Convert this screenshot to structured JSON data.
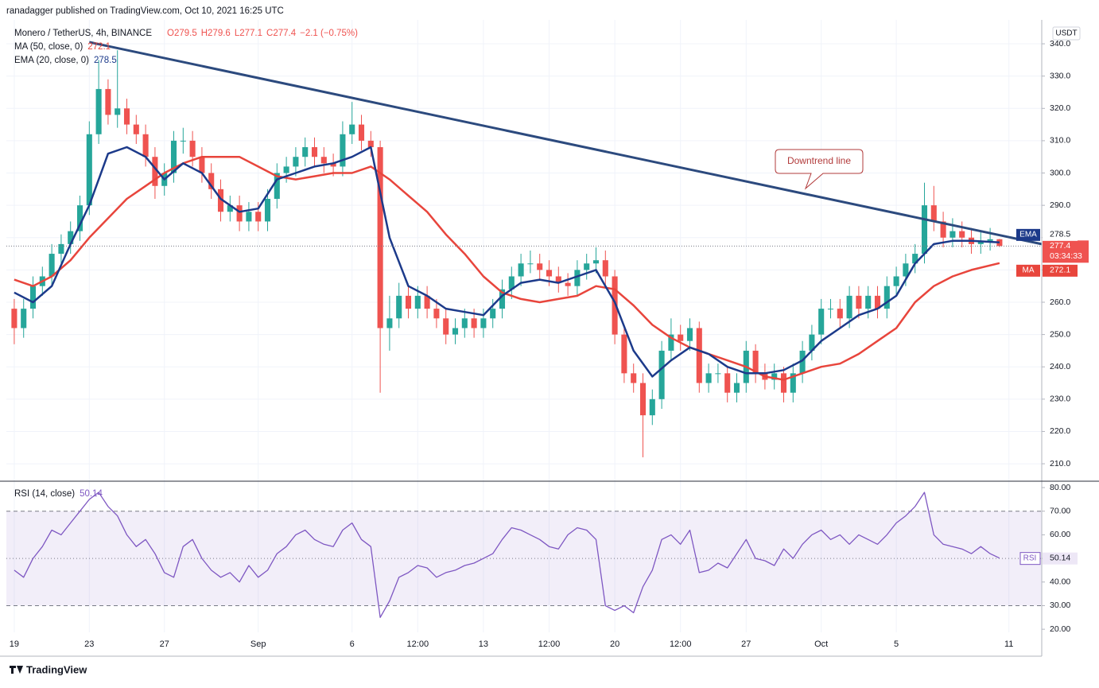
{
  "header": {
    "published": "ranadagger published on TradingView.com, Oct 10, 2021 16:25 UTC",
    "symbol": "Monero / TetherUS, 4h, BINANCE",
    "ohlc": [
      "O279.5",
      "H279.6",
      "L277.1",
      "C277.4",
      "−2.1 (−0.75%)"
    ],
    "currency": "USDT",
    "countdown": "03:34:33"
  },
  "footer": {
    "brand": "TradingView"
  },
  "chart_data": [
    {
      "type": "candlestick",
      "up_color": "#26a69a",
      "down_color": "#ef5350",
      "x": [
        0,
        0.5,
        1,
        1.5,
        2,
        2.5,
        3,
        3.5,
        4,
        4.5,
        5,
        5.5,
        6,
        6.5,
        7,
        7.5,
        8,
        8.5,
        9,
        9.5,
        10,
        10.5,
        11,
        11.5,
        12,
        12.5,
        13,
        13.5,
        14,
        14.5,
        15,
        15.5,
        16,
        16.5,
        17,
        17.5,
        18,
        18.5,
        19,
        19.5,
        20,
        20.5,
        21,
        21.5,
        22,
        22.5,
        23,
        23.5,
        24,
        24.5,
        25,
        25.5,
        26,
        26.5,
        27,
        27.5,
        28,
        28.5,
        29,
        29.5,
        30,
        30.5,
        31,
        31.5,
        32,
        32.5,
        33,
        33.5,
        34,
        34.5,
        35,
        35.5,
        36,
        36.5,
        37,
        37.5,
        38,
        38.5,
        39,
        39.5,
        40,
        40.5,
        41,
        41.5,
        42,
        42.5,
        43,
        43.5,
        44,
        44.5,
        45,
        45.5,
        46,
        46.5,
        47,
        47.5,
        48,
        48.5,
        49,
        49.5,
        50,
        50.5,
        51,
        51.5,
        52,
        52.5
      ],
      "open": [
        258,
        252,
        258,
        265,
        268,
        275,
        278,
        282,
        290,
        312,
        326,
        318,
        320,
        315,
        312,
        305,
        296,
        300,
        310,
        310,
        305,
        300,
        295,
        288,
        290,
        285,
        288,
        285,
        292,
        300,
        302,
        305,
        308,
        305,
        303,
        302,
        312,
        315,
        310,
        308,
        252,
        255,
        262,
        258,
        262,
        258,
        255,
        250,
        252,
        255,
        252,
        255,
        258,
        264,
        268,
        272,
        272,
        270,
        268,
        266,
        265,
        270,
        272,
        273,
        268,
        250,
        238,
        235,
        225,
        230,
        245,
        250,
        248,
        252,
        235,
        238,
        238,
        232,
        235,
        245,
        238,
        236,
        238,
        232,
        238,
        245,
        250,
        258,
        258,
        255,
        262,
        258,
        262,
        258,
        265,
        268,
        272,
        275,
        290,
        285,
        280,
        282,
        280,
        278,
        279,
        279.5
      ],
      "high": [
        261,
        261,
        268,
        271,
        278,
        281,
        285,
        293,
        316,
        335,
        329,
        338,
        323,
        318,
        315,
        308,
        303,
        313,
        314,
        313,
        308,
        303,
        298,
        293,
        293,
        291,
        291,
        295,
        303,
        305,
        308,
        311,
        311,
        308,
        306,
        316,
        322,
        318,
        313,
        310,
        262,
        266,
        265,
        265,
        265,
        261,
        258,
        255,
        258,
        258,
        258,
        261,
        267,
        271,
        275,
        276,
        275,
        273,
        271,
        269,
        273,
        275,
        277,
        276,
        270,
        253,
        241,
        238,
        233,
        248,
        255,
        253,
        255,
        254,
        241,
        241,
        240,
        238,
        248,
        247,
        241,
        241,
        240,
        241,
        248,
        253,
        261,
        261,
        261,
        265,
        265,
        265,
        265,
        268,
        271,
        275,
        278,
        297,
        296,
        288,
        286,
        285,
        283,
        282,
        283,
        279.6
      ],
      "low": [
        247,
        249,
        255,
        262,
        265,
        272,
        275,
        279,
        287,
        309,
        315,
        314,
        312,
        309,
        302,
        292,
        293,
        297,
        306,
        302,
        297,
        292,
        285,
        285,
        282,
        282,
        282,
        282,
        289,
        297,
        299,
        302,
        302,
        300,
        299,
        299,
        309,
        307,
        305,
        232,
        245,
        252,
        255,
        255,
        255,
        252,
        247,
        247,
        249,
        249,
        249,
        252,
        255,
        261,
        265,
        269,
        267,
        265,
        263,
        262,
        262,
        267,
        269,
        265,
        247,
        235,
        232,
        212,
        222,
        227,
        242,
        245,
        245,
        232,
        232,
        235,
        229,
        229,
        232,
        235,
        233,
        233,
        229,
        229,
        235,
        242,
        247,
        255,
        252,
        252,
        255,
        255,
        255,
        255,
        262,
        265,
        269,
        272,
        282,
        277,
        277,
        277,
        275,
        275,
        276,
        277.1
      ],
      "close": [
        252,
        258,
        265,
        268,
        275,
        278,
        282,
        290,
        312,
        326,
        318,
        320,
        315,
        312,
        305,
        296,
        300,
        310,
        310,
        305,
        300,
        295,
        288,
        290,
        285,
        288,
        285,
        292,
        300,
        302,
        305,
        308,
        305,
        303,
        302,
        312,
        315,
        310,
        308,
        252,
        255,
        262,
        258,
        262,
        258,
        255,
        250,
        252,
        255,
        252,
        255,
        258,
        264,
        268,
        272,
        272,
        270,
        268,
        266,
        265,
        270,
        272,
        273,
        268,
        250,
        238,
        235,
        225,
        230,
        245,
        250,
        248,
        252,
        235,
        238,
        238,
        232,
        235,
        245,
        238,
        236,
        238,
        232,
        238,
        245,
        250,
        258,
        258,
        255,
        262,
        258,
        262,
        258,
        265,
        268,
        272,
        275,
        290,
        285,
        280,
        282,
        280,
        278,
        279,
        279.5,
        277.4
      ],
      "series": [
        {
          "name": "MA (50, close, 0)",
          "short_name": "MA",
          "color": "#e8453c",
          "x": [
            0,
            1,
            2,
            3,
            4,
            5,
            6,
            7,
            8,
            9,
            10,
            11,
            12,
            13,
            14,
            15,
            16,
            17,
            18,
            19,
            20,
            21,
            22,
            23,
            24,
            25,
            26,
            27,
            28,
            29,
            30,
            31,
            32,
            33,
            34,
            35,
            36,
            37,
            38,
            39,
            40,
            41,
            42,
            43,
            44,
            45,
            46,
            47,
            48,
            49,
            50,
            51,
            52.5
          ],
          "values": [
            267,
            265,
            268,
            273,
            280,
            286,
            292,
            296,
            300,
            303,
            305,
            305,
            305,
            302,
            299,
            298,
            299,
            300,
            300,
            302,
            298,
            293,
            288,
            281,
            275,
            268,
            263,
            261,
            260,
            261,
            262,
            265,
            264,
            259,
            253,
            249,
            246,
            244,
            242,
            240,
            237,
            236,
            238,
            240,
            241,
            244,
            248,
            252,
            260,
            265,
            268,
            270,
            272.1
          ]
        },
        {
          "name": "EMA (20, close, 0)",
          "short_name": "EMA",
          "color": "#1c3a8a",
          "x": [
            0,
            1,
            2,
            3,
            4,
            5,
            6,
            7,
            8,
            9,
            10,
            11,
            12,
            13,
            14,
            15,
            16,
            17,
            18,
            19,
            20,
            21,
            22,
            23,
            24,
            25,
            26,
            27,
            28,
            29,
            30,
            31,
            32,
            33,
            34,
            35,
            36,
            37,
            38,
            39,
            40,
            41,
            42,
            43,
            44,
            45,
            46,
            47,
            48,
            49,
            50,
            51,
            52.5
          ],
          "values": [
            263,
            260,
            265,
            278,
            290,
            306,
            308,
            305,
            298,
            303,
            300,
            292,
            288,
            289,
            298,
            300,
            302,
            303,
            305,
            308,
            280,
            265,
            262,
            258,
            257,
            256,
            262,
            266,
            267,
            266,
            268,
            270,
            260,
            245,
            237,
            242,
            246,
            244,
            240,
            238,
            238,
            239,
            242,
            248,
            252,
            256,
            258,
            262,
            272,
            278,
            279,
            279,
            278.5
          ]
        }
      ],
      "trendline": {
        "color": "#2c4a7e",
        "x": [
          4,
          54.75
        ],
        "values": [
          340.5,
          278
        ]
      },
      "annotation": "Downtrend line",
      "xlim": [
        -0.42,
        54.75
      ],
      "ylim": [
        204.6,
        347.4
      ],
      "yticks": [
        {
          "value": 210,
          "label": "210.0"
        },
        {
          "value": 220,
          "label": "220.0"
        },
        {
          "value": 230,
          "label": "230.0"
        },
        {
          "value": 240,
          "label": "240.0"
        },
        {
          "value": 250,
          "label": "250.0"
        },
        {
          "value": 260,
          "label": "260.0"
        },
        {
          "value": 270,
          "label": "270.0"
        },
        {
          "value": 280,
          "label": "280.0"
        },
        {
          "value": 290,
          "label": "290.0"
        },
        {
          "value": 300,
          "label": "300.0"
        },
        {
          "value": 310,
          "label": "310.0"
        },
        {
          "value": 320,
          "label": "320.0"
        },
        {
          "value": 330,
          "label": "330.0"
        },
        {
          "value": 340,
          "label": "340.0"
        }
      ],
      "xticks": [
        {
          "value": 0,
          "label": "19"
        },
        {
          "value": 4,
          "label": "23"
        },
        {
          "value": 8,
          "label": "27"
        },
        {
          "value": 13,
          "label": "Sep"
        },
        {
          "value": 18,
          "label": "6"
        },
        {
          "value": 21.5,
          "label": "12:00"
        },
        {
          "value": 25,
          "label": "13"
        },
        {
          "value": 28.5,
          "label": "12:00"
        },
        {
          "value": 32,
          "label": "20"
        },
        {
          "value": 35.5,
          "label": "12:00"
        },
        {
          "value": 39,
          "label": "27"
        },
        {
          "value": 43,
          "label": "Oct"
        },
        {
          "value": 47,
          "label": "5"
        },
        {
          "value": 53,
          "label": "11"
        }
      ],
      "grid": true
    },
    {
      "type": "line",
      "name": "RSI (14, close)",
      "short_name": "RSI",
      "color": "#7e57c2",
      "x": [
        0,
        0.5,
        1,
        1.5,
        2,
        2.5,
        3,
        3.5,
        4,
        4.5,
        5,
        5.5,
        6,
        6.5,
        7,
        7.5,
        8,
        8.5,
        9,
        9.5,
        10,
        10.5,
        11,
        11.5,
        12,
        12.5,
        13,
        13.5,
        14,
        14.5,
        15,
        15.5,
        16,
        16.5,
        17,
        17.5,
        18,
        18.5,
        19,
        19.5,
        20,
        20.5,
        21,
        21.5,
        22,
        22.5,
        23,
        23.5,
        24,
        24.5,
        25,
        25.5,
        26,
        26.5,
        27,
        27.5,
        28,
        28.5,
        29,
        29.5,
        30,
        30.5,
        31,
        31.5,
        32,
        32.5,
        33,
        33.5,
        34,
        34.5,
        35,
        35.5,
        36,
        36.5,
        37,
        37.5,
        38,
        38.5,
        39,
        39.5,
        40,
        40.5,
        41,
        41.5,
        42,
        42.5,
        43,
        43.5,
        44,
        44.5,
        45,
        45.5,
        46,
        46.5,
        47,
        47.5,
        48,
        48.5,
        49,
        49.5,
        50,
        50.5,
        51,
        51.5,
        52,
        52.5
      ],
      "values": [
        45,
        42,
        50,
        55,
        62,
        60,
        65,
        70,
        75,
        78,
        72,
        68,
        60,
        55,
        58,
        52,
        44,
        42,
        55,
        58,
        50,
        45,
        42,
        44,
        40,
        47,
        42,
        45,
        52,
        55,
        60,
        62,
        58,
        56,
        55,
        62,
        65,
        58,
        55,
        25,
        32,
        42,
        44,
        47,
        46,
        42,
        44,
        45,
        47,
        48,
        50,
        52,
        58,
        63,
        62,
        60,
        58,
        55,
        54,
        60,
        63,
        62,
        58,
        30,
        28,
        30,
        27,
        38,
        45,
        58,
        60,
        56,
        62,
        44,
        45,
        48,
        46,
        52,
        58,
        50,
        49,
        47,
        54,
        50,
        56,
        60,
        62,
        58,
        60,
        56,
        60,
        58,
        56,
        60,
        65,
        68,
        72,
        78,
        60,
        56,
        55,
        54,
        52,
        55,
        52,
        50.14
      ],
      "levels": [
        30,
        50,
        70
      ],
      "xlim": [
        -0.42,
        54.75
      ],
      "ylim": [
        18.7,
        82.7
      ],
      "yticks": [
        {
          "value": 20,
          "label": "20.00"
        },
        {
          "value": 30,
          "label": "30.00"
        },
        {
          "value": 40,
          "label": "40.00"
        },
        {
          "value": 50,
          "label": "50.00"
        },
        {
          "value": 60,
          "label": "60.00"
        },
        {
          "value": 70,
          "label": "70.00"
        },
        {
          "value": 80,
          "label": "80.00"
        }
      ]
    }
  ]
}
